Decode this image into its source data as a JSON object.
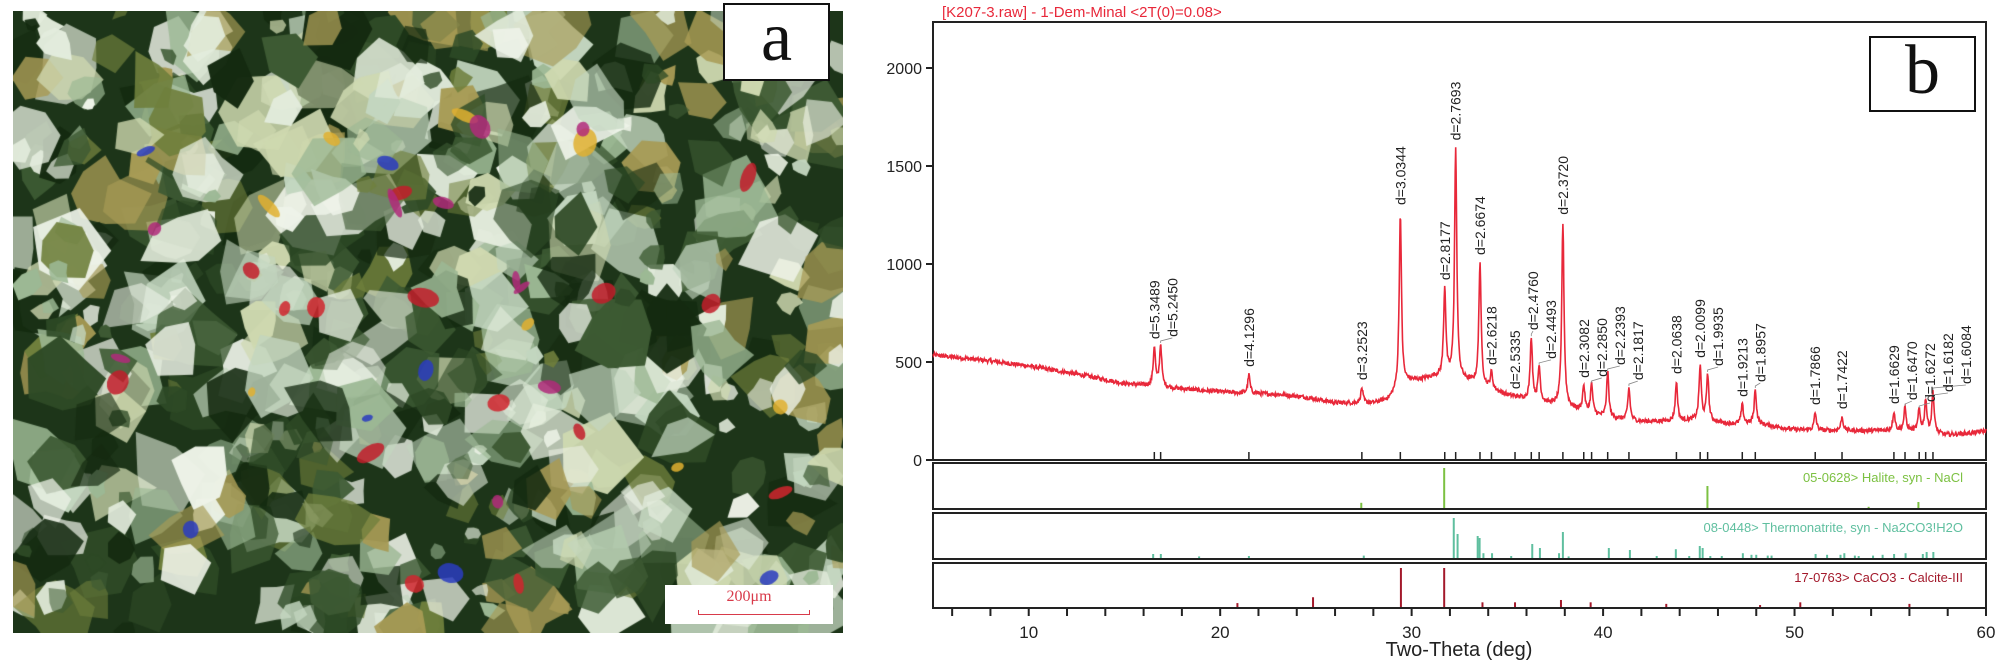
{
  "panel_a": {
    "label": "a",
    "scale_bar": "200μm"
  },
  "panel_b": {
    "label": "b"
  },
  "chart_data": {
    "type": "line",
    "title": "[K207-3.raw] - 1-Dem-Minal <2T(0)=0.08>",
    "xlabel": "Two-Theta (deg)",
    "ylabel": "",
    "xlim": [
      5,
      60
    ],
    "ylim": [
      0,
      2235
    ],
    "x_ticks": [
      10,
      20,
      30,
      40,
      50,
      60
    ],
    "y_ticks": [
      0,
      500,
      1000,
      1500,
      2000
    ],
    "grid": false,
    "colors": {
      "pattern": "#e8283a",
      "halite": "#7cc142",
      "thermonatrite": "#5fbf9f",
      "calcite": "#a3192b"
    },
    "background": [
      [
        5,
        536
      ],
      [
        8,
        505
      ],
      [
        10,
        480
      ],
      [
        13,
        430
      ],
      [
        15,
        390
      ],
      [
        17,
        372
      ],
      [
        19,
        355
      ],
      [
        21,
        342
      ],
      [
        23,
        335
      ],
      [
        24.5,
        320
      ],
      [
        26,
        292
      ],
      [
        28,
        290
      ],
      [
        28.8,
        310
      ],
      [
        29.8,
        400
      ],
      [
        30.5,
        410
      ],
      [
        31.2,
        425
      ],
      [
        33,
        400
      ],
      [
        35,
        330
      ],
      [
        37,
        290
      ],
      [
        38.5,
        260
      ],
      [
        40,
        219
      ],
      [
        42,
        196
      ],
      [
        44,
        200
      ],
      [
        45,
        205
      ],
      [
        46.5,
        185
      ],
      [
        48,
        185
      ],
      [
        50,
        155
      ],
      [
        52,
        150
      ],
      [
        54,
        150
      ],
      [
        56,
        150
      ],
      [
        58,
        128
      ],
      [
        59.5,
        140
      ],
      [
        60,
        150
      ]
    ],
    "peaks": [
      {
        "two_theta": 16.56,
        "intensity": 576,
        "label": "d=5.3489"
      },
      {
        "two_theta": 16.89,
        "intensity": 587,
        "label": "d=5.2450"
      },
      {
        "two_theta": 21.5,
        "intensity": 434,
        "label": "d=4.1296"
      },
      {
        "two_theta": 27.4,
        "intensity": 367,
        "label": "d=3.2523"
      },
      {
        "two_theta": 29.41,
        "intensity": 1260,
        "label": "d=3.0344"
      },
      {
        "two_theta": 31.73,
        "intensity": 877,
        "label": "d=2.8177"
      },
      {
        "two_theta": 32.3,
        "intensity": 1590,
        "label": "d=2.7693"
      },
      {
        "two_theta": 33.57,
        "intensity": 1005,
        "label": "d=2.6674"
      },
      {
        "two_theta": 34.17,
        "intensity": 444,
        "label": "d=2.6218"
      },
      {
        "two_theta": 35.4,
        "intensity": 321,
        "label": "d=2.5335"
      },
      {
        "two_theta": 36.25,
        "intensity": 622,
        "label": "d=2.4760"
      },
      {
        "two_theta": 36.66,
        "intensity": 475,
        "label": "d=2.4493"
      },
      {
        "two_theta": 37.9,
        "intensity": 1210,
        "label": "d=2.3720"
      },
      {
        "two_theta": 38.99,
        "intensity": 378,
        "label": "d=2.3082"
      },
      {
        "two_theta": 39.4,
        "intensity": 383,
        "label": "d=2.2850"
      },
      {
        "two_theta": 40.24,
        "intensity": 444,
        "label": "d=2.2393"
      },
      {
        "two_theta": 41.35,
        "intensity": 367,
        "label": "d=2.1817"
      },
      {
        "two_theta": 43.83,
        "intensity": 398,
        "label": "d=2.0638"
      },
      {
        "two_theta": 45.07,
        "intensity": 480,
        "label": "d=2.0099"
      },
      {
        "two_theta": 45.46,
        "intensity": 439,
        "label": "d=1.9935"
      },
      {
        "two_theta": 47.27,
        "intensity": 281,
        "label": "d=1.9213"
      },
      {
        "two_theta": 47.95,
        "intensity": 357,
        "label": "d=1.8957"
      },
      {
        "two_theta": 51.08,
        "intensity": 240,
        "label": "d=1.7866"
      },
      {
        "two_theta": 52.48,
        "intensity": 219,
        "label": "d=1.7422"
      },
      {
        "two_theta": 55.19,
        "intensity": 245,
        "label": "d=1.6629"
      },
      {
        "two_theta": 55.77,
        "intensity": 265,
        "label": "d=1.6470"
      },
      {
        "two_theta": 56.51,
        "intensity": 255,
        "label": "d=1.6272"
      },
      {
        "two_theta": 56.85,
        "intensity": 306,
        "label": "d=1.6182"
      },
      {
        "two_theta": 57.23,
        "intensity": 347,
        "label": "d=1.6084"
      }
    ],
    "reference_patterns": [
      {
        "name": "05-0628> Halite, syn - NaCl",
        "color": "#7cc142",
        "sticks": [
          [
            27.37,
            13
          ],
          [
            31.7,
            100
          ],
          [
            45.45,
            55
          ],
          [
            53.87,
            3
          ],
          [
            56.47,
            15
          ]
        ]
      },
      {
        "name": "08-0448> Thermonatrite, syn - Na2CO3!H2O",
        "color": "#5fbf9f",
        "sticks": [
          [
            16.5,
            10
          ],
          [
            16.9,
            10
          ],
          [
            18.9,
            4
          ],
          [
            21.5,
            5
          ],
          [
            27.5,
            6
          ],
          [
            32.2,
            100
          ],
          [
            32.4,
            60
          ],
          [
            33.45,
            55
          ],
          [
            33.55,
            50
          ],
          [
            33.75,
            12
          ],
          [
            34.2,
            12
          ],
          [
            35.2,
            5
          ],
          [
            36.3,
            35
          ],
          [
            36.7,
            25
          ],
          [
            37.7,
            12
          ],
          [
            37.9,
            65
          ],
          [
            38.2,
            4
          ],
          [
            40.3,
            25
          ],
          [
            41.4,
            20
          ],
          [
            42.8,
            5
          ],
          [
            43.8,
            22
          ],
          [
            44.5,
            5
          ],
          [
            45.05,
            30
          ],
          [
            45.2,
            25
          ],
          [
            45.6,
            5
          ],
          [
            46.2,
            5
          ],
          [
            47.3,
            12
          ],
          [
            47.75,
            8
          ],
          [
            48.0,
            8
          ],
          [
            48.6,
            6
          ],
          [
            48.8,
            6
          ],
          [
            51.1,
            10
          ],
          [
            51.7,
            8
          ],
          [
            52.4,
            8
          ],
          [
            52.6,
            12
          ],
          [
            53.15,
            6
          ],
          [
            53.35,
            5
          ],
          [
            54.1,
            6
          ],
          [
            54.6,
            8
          ],
          [
            55.2,
            10
          ],
          [
            55.8,
            12
          ],
          [
            56.7,
            10
          ],
          [
            56.9,
            15
          ],
          [
            57.25,
            15
          ]
        ]
      },
      {
        "name": "17-0763> CaCO3 - Calcite-III",
        "color": "#a3192b",
        "sticks": [
          [
            20.9,
            10
          ],
          [
            24.85,
            25
          ],
          [
            29.44,
            100
          ],
          [
            31.7,
            100
          ],
          [
            33.7,
            12
          ],
          [
            35.4,
            12
          ],
          [
            37.8,
            18
          ],
          [
            39.35,
            12
          ],
          [
            43.3,
            8
          ],
          [
            48.2,
            5
          ],
          [
            50.3,
            12
          ],
          [
            56.0,
            8
          ]
        ]
      }
    ]
  }
}
